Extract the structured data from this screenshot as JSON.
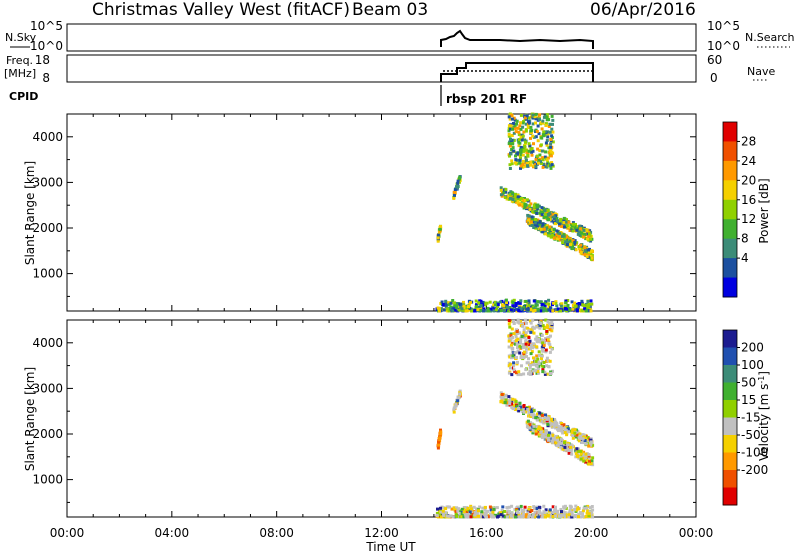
{
  "header": {
    "station": "Christmas Valley West (fitACF)",
    "beam": "Beam 03",
    "date": "06/Apr/2016"
  },
  "top_panels": {
    "nsky_label": "N.Sky",
    "nsky_ticks": [
      "10^5",
      "10^0"
    ],
    "nsky_right_ticks": [
      "10^5",
      "10^0"
    ],
    "nsearch_label": "N.Search",
    "freq_label_line1": "Freq.",
    "freq_label_line2": "[MHz]",
    "freq_ticks": [
      "18",
      "8"
    ],
    "nave_ticks": [
      "60",
      "0"
    ],
    "nave_label": "Nave",
    "cpid_label": "CPID",
    "cpid_value": "rbsp 201 RF"
  },
  "panels": {
    "power": {
      "ylabel": "Slant Range [km]",
      "cbar_label": "Power [dB]",
      "cbar_ticks": [
        "28",
        "24",
        "20",
        "16",
        "12",
        "8",
        "4"
      ],
      "cbar_colors": [
        "#e00000",
        "#f05000",
        "#ff9900",
        "#f5d000",
        "#90d000",
        "#40b030",
        "#3c8c78",
        "#1c50a0",
        "#0000e0"
      ]
    },
    "velocity": {
      "ylabel": "Slant Range [km]",
      "cbar_label": "Velocity [m s^-1]",
      "cbar_ticks": [
        "200",
        "100",
        "50",
        "15",
        "-15",
        "-50",
        "-100",
        "-200"
      ],
      "cbar_colors": [
        "#1c1c90",
        "#2050b0",
        "#3c8c78",
        "#40b030",
        "#90d000",
        "#c0c0c0",
        "#f5d000",
        "#ff9900",
        "#f05000",
        "#e00000"
      ]
    }
  },
  "xaxis": {
    "label": "Time UT",
    "ticks": [
      "00:00",
      "04:00",
      "08:00",
      "12:00",
      "16:00",
      "20:00",
      "00:00"
    ]
  },
  "chart_data": [
    {
      "type": "heatmap",
      "name": "power",
      "xlabel": "",
      "ylabel": "Slant Range [km]",
      "xlim_hours": [
        0,
        24
      ],
      "ylim_km": [
        180,
        4500
      ],
      "yticks": [
        1000,
        2000,
        3000,
        4000
      ],
      "colorbar": {
        "label": "Power [dB]",
        "ticks": [
          4,
          8,
          12,
          16,
          20,
          24,
          28
        ],
        "range": [
          0,
          30
        ]
      },
      "data_time_range_hours": [
        14.0,
        20.0
      ],
      "features": [
        {
          "t": [
            14.05,
            20.0
          ],
          "r": [
            180,
            420
          ],
          "level": "mixed"
        },
        {
          "t": [
            14.7,
            14.95
          ],
          "r": [
            2700,
            3100
          ],
          "level": "mid"
        },
        {
          "t": [
            14.1,
            14.2
          ],
          "r": [
            1750,
            2050
          ],
          "level": "low"
        },
        {
          "t": [
            16.5,
            20.0
          ],
          "r": [
            2800,
            1800
          ],
          "level": "mid"
        },
        {
          "t": [
            17.5,
            20.0
          ],
          "r": [
            2200,
            1400
          ],
          "level": "mid"
        },
        {
          "t": [
            16.8,
            18.5
          ],
          "r": [
            3300,
            4500
          ],
          "level": "high"
        }
      ]
    },
    {
      "type": "heatmap",
      "name": "velocity",
      "xlabel": "Time UT",
      "ylabel": "Slant Range [km]",
      "xlim_hours": [
        0,
        24
      ],
      "ylim_km": [
        180,
        4500
      ],
      "yticks": [
        1000,
        2000,
        3000,
        4000
      ],
      "colorbar": {
        "label": "Velocity [m s^-1]",
        "ticks": [
          -200,
          -100,
          -50,
          -15,
          15,
          50,
          100,
          200
        ],
        "range": [
          -250,
          250
        ]
      },
      "data_time_range_hours": [
        14.0,
        20.0
      ],
      "features": [
        {
          "t": [
            14.05,
            20.0
          ],
          "r": [
            180,
            420
          ],
          "level": "low-velocity"
        },
        {
          "t": [
            14.7,
            14.95
          ],
          "r": [
            2500,
            2900
          ],
          "level": "low-velocity"
        },
        {
          "t": [
            14.1,
            14.2
          ],
          "r": [
            1700,
            2050
          ],
          "level": "negative"
        },
        {
          "t": [
            16.5,
            20.0
          ],
          "r": [
            2800,
            1800
          ],
          "level": "low-velocity"
        },
        {
          "t": [
            17.5,
            20.0
          ],
          "r": [
            2200,
            1400
          ],
          "level": "low-velocity"
        },
        {
          "t": [
            16.8,
            18.5
          ],
          "r": [
            3300,
            4500
          ],
          "level": "low-velocity"
        }
      ]
    }
  ]
}
